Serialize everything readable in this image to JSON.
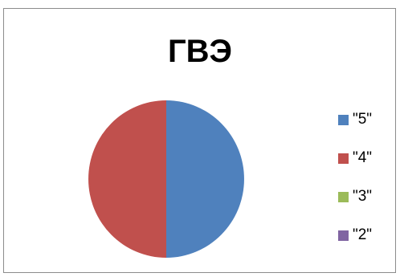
{
  "chart_data": {
    "type": "pie",
    "title": "ГВЭ",
    "categories": [
      "\"5\"",
      "\"4\"",
      "\"3\"",
      "\"2\""
    ],
    "values": [
      1,
      1,
      0,
      0
    ],
    "colors": [
      "#4f81bd",
      "#c0504d",
      "#9bbb59",
      "#8064a2"
    ],
    "legend_position": "right"
  }
}
